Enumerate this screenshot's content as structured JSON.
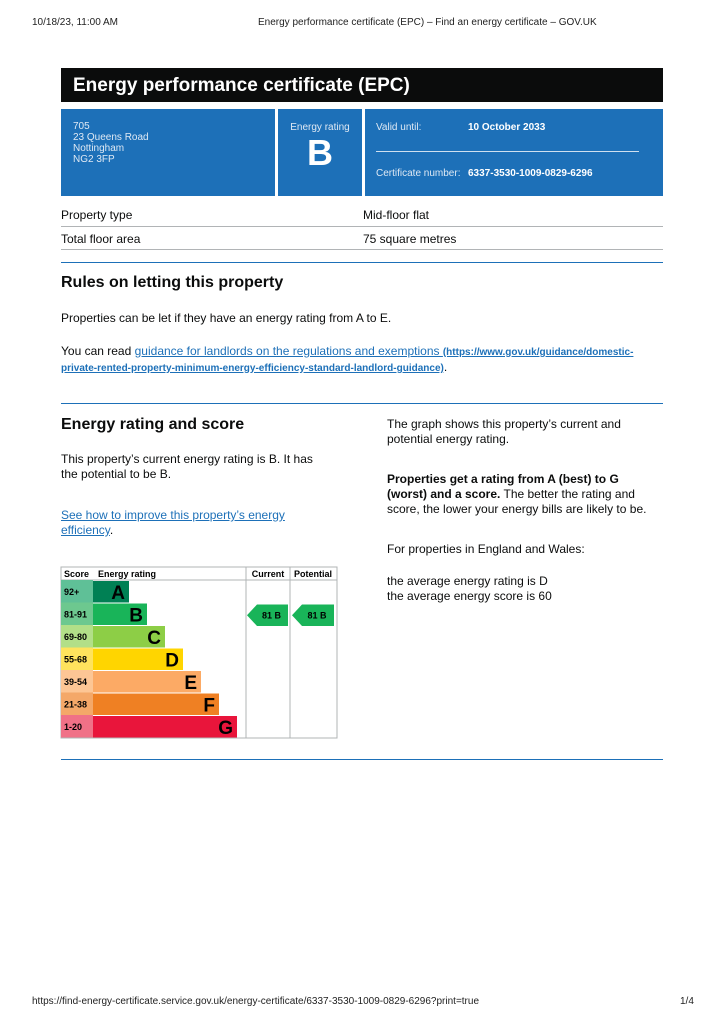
{
  "browser": {
    "datetime": "10/18/23, 11:00 AM",
    "page_title": "Energy performance certificate (EPC) – Find an energy certificate – GOV.UK",
    "url": "https://find-energy-certificate.service.gov.uk/energy-certificate/6337-3530-1009-0829-6296?print=true",
    "page_num": "1/4"
  },
  "title": "Energy performance certificate (EPC)",
  "address": [
    "705",
    "23 Queens Road",
    "Nottingham",
    "NG2 3FP"
  ],
  "rating": {
    "label": "Energy rating",
    "value": "B"
  },
  "validity": {
    "valid_label": "Valid until:",
    "valid_value": "10 October 2033",
    "cert_label": "Certificate number:",
    "cert_value": "6337-3530-1009-0829-6296"
  },
  "property": [
    {
      "label": "Property type",
      "value": "Mid-floor flat"
    },
    {
      "label": "Total floor area",
      "value": "75 square metres"
    }
  ],
  "letting": {
    "heading": "Rules on letting this property",
    "text": "Properties can be let if they have an energy rating from A to E.",
    "read_prefix": "You can read ",
    "link_text": "guidance for landlords on the regulations and exemptions",
    "link_url_1": "(https://www.gov.uk/guidance/domestic-",
    "link_url_2": "private-rented-property-minimum-energy-efficiency-standard-landlord-guidance)",
    "suffix": "."
  },
  "score": {
    "heading": "Energy rating and score",
    "text_1": "This property’s current energy rating is B. It has",
    "text_2": "the potential to be B.",
    "link_1": "See how to improve this property’s energy",
    "link_2": "efficiency",
    "link_suffix": ".",
    "right_1": "The graph shows this property’s current and",
    "right_2": "potential energy rating.",
    "bold_1": "Properties get a rating from A (best) to G",
    "bold_2": "(worst) and a score.",
    "rest_2": " The better the rating and",
    "rest_3": "score, the lower your energy bills are likely to be.",
    "england": "For properties in England and Wales:",
    "avg_rating": "the average energy rating is D",
    "avg_score": "the average energy score is 60"
  },
  "chart_data": {
    "type": "table",
    "headers": [
      "Score",
      "Energy rating",
      "Current",
      "Potential"
    ],
    "bands": [
      {
        "score": "92+",
        "letter": "A",
        "color": "#008054",
        "score_bg": "#5fc097"
      },
      {
        "score": "81-91",
        "letter": "B",
        "color": "#19b459",
        "score_bg": "#6dc88f"
      },
      {
        "score": "69-80",
        "letter": "C",
        "color": "#8dce46",
        "score_bg": "#b2df88"
      },
      {
        "score": "55-68",
        "letter": "D",
        "color": "#ffd500",
        "score_bg": "#ffe35d"
      },
      {
        "score": "39-54",
        "letter": "E",
        "color": "#fcaa65",
        "score_bg": "#fdc695"
      },
      {
        "score": "21-38",
        "letter": "F",
        "color": "#ef8023",
        "score_bg": "#f4a869"
      },
      {
        "score": "1-20",
        "letter": "G",
        "color": "#e9153b",
        "score_bg": "#f07187"
      }
    ],
    "current": {
      "score": 81,
      "letter": "B"
    },
    "potential": {
      "score": 81,
      "letter": "B"
    }
  }
}
